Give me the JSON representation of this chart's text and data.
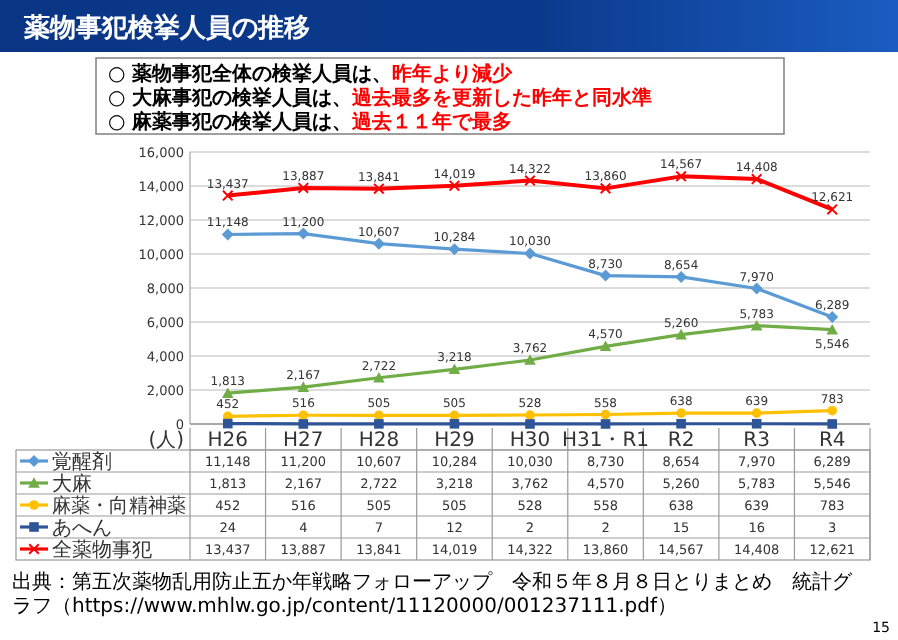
{
  "chart_data": {
    "type": "line",
    "title": "薬物事犯検挙人員の推移",
    "ylabel": "(人)",
    "categories": [
      "H26",
      "H27",
      "H28",
      "H29",
      "H30",
      "H31・R1",
      "R2",
      "R3",
      "R4"
    ],
    "series": [
      {
        "name": "覚醒剤",
        "color": "#5b9bd5",
        "marker": "diamond",
        "values": [
          11148,
          11200,
          10607,
          10284,
          10030,
          8730,
          8654,
          7970,
          6289
        ],
        "value_labels": [
          "11,148",
          "11,200",
          "10,607",
          "10,284",
          "10,030",
          "8,730",
          "8,654",
          "7,970",
          "6,289"
        ]
      },
      {
        "name": "大麻",
        "color": "#70ad47",
        "marker": "triangle",
        "values": [
          1813,
          2167,
          2722,
          3218,
          3762,
          4570,
          5260,
          5783,
          5546
        ],
        "value_labels": [
          "1,813",
          "2,167",
          "2,722",
          "3,218",
          "3,762",
          "4,570",
          "5,260",
          "5,783",
          "5,546"
        ]
      },
      {
        "name": "麻薬・向精神薬",
        "color": "#ffc000",
        "marker": "circle",
        "values": [
          452,
          516,
          505,
          505,
          528,
          558,
          638,
          639,
          783
        ],
        "value_labels": [
          "452",
          "516",
          "505",
          "505",
          "528",
          "558",
          "638",
          "639",
          "783"
        ]
      },
      {
        "name": "あへん",
        "color": "#2f5597",
        "marker": "square",
        "data_labels": false,
        "values": [
          24,
          4,
          7,
          12,
          2,
          2,
          15,
          16,
          3
        ],
        "value_labels": [
          "24",
          "4",
          "7",
          "12",
          "2",
          "2",
          "15",
          "16",
          "3"
        ]
      },
      {
        "name": "全薬物事犯",
        "color": "#ff0000",
        "marker": "cross",
        "values": [
          13437,
          13887,
          13841,
          14019,
          14322,
          13860,
          14567,
          14408,
          12621
        ],
        "value_labels": [
          "13,437",
          "13,887",
          "13,841",
          "14,019",
          "14,322",
          "13,860",
          "14,567",
          "14,408",
          "12,621"
        ]
      }
    ],
    "ylim": [
      0,
      16000
    ],
    "yticks": [
      {
        "value": 0,
        "label": "0"
      },
      {
        "value": 2000,
        "label": "2,000"
      },
      {
        "value": 4000,
        "label": "4,000"
      },
      {
        "value": 6000,
        "label": "6,000"
      },
      {
        "value": 8000,
        "label": "8,000"
      },
      {
        "value": 10000,
        "label": "10,000"
      },
      {
        "value": 12000,
        "label": "12,000"
      },
      {
        "value": 14000,
        "label": "14,000"
      },
      {
        "value": 16000,
        "label": "16,000"
      }
    ],
    "grid": "y",
    "legend": "bottom",
    "annotations": [
      "○ 薬物事犯全体の検挙人員は、",
      "昨年より減少",
      "○ 大麻事犯の検挙人員は、",
      "過去最多を更新した昨年と同水準",
      "○ 麻薬事犯の検挙人員は、",
      "過去１１年で最多",
      "出典：第五次薬物乱用防止五か年戦略フォローアップ　令和５年８月８日とりまとめ　統計グラフ（https://www.mhlw.go.jp/content/11120000/001237111.pdf）",
      "15"
    ]
  }
}
